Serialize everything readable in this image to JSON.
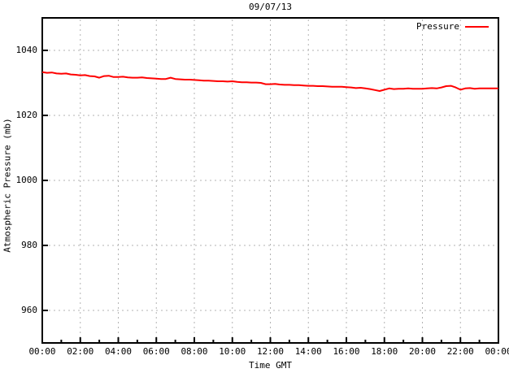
{
  "chart_data": {
    "type": "line",
    "title": "09/07/13",
    "xlabel": "Time GMT",
    "ylabel": "Atmospheric Pressure (mb)",
    "grid": true,
    "legend_position": "top-right-inside",
    "xlim_hours": [
      0,
      24
    ],
    "ylim": [
      950,
      1050
    ],
    "y_ticks": [
      960,
      980,
      1000,
      1020,
      1040
    ],
    "x_ticks": {
      "hours": [
        0,
        2,
        4,
        6,
        8,
        10,
        12,
        14,
        16,
        18,
        20,
        22,
        24
      ],
      "labels": [
        "00:00",
        "02:00",
        "04:00",
        "06:00",
        "08:00",
        "10:00",
        "12:00",
        "14:00",
        "16:00",
        "18:00",
        "20:00",
        "22:00",
        "00:00"
      ]
    },
    "x_minor_tick_hours": [
      1,
      3,
      5,
      7,
      9,
      11,
      13,
      15,
      17,
      19,
      21,
      23
    ],
    "colors": {
      "line": "#ff0000",
      "grid": "#b3b3b3",
      "axis": "#000000",
      "text": "#000000",
      "background": "#ffffff"
    },
    "series": [
      {
        "name": "Pressure",
        "color": "#ff0000",
        "x_start_hour": 0,
        "x_step_hours": 0.25,
        "values": [
          1033.3,
          1033.1,
          1033.2,
          1032.9,
          1032.8,
          1032.9,
          1032.6,
          1032.5,
          1032.3,
          1032.4,
          1032.1,
          1032.0,
          1031.6,
          1032.1,
          1032.2,
          1031.8,
          1031.8,
          1031.9,
          1031.7,
          1031.6,
          1031.6,
          1031.7,
          1031.5,
          1031.4,
          1031.3,
          1031.2,
          1031.2,
          1031.6,
          1031.2,
          1031.1,
          1031.0,
          1031.0,
          1030.9,
          1030.8,
          1030.7,
          1030.7,
          1030.6,
          1030.5,
          1030.5,
          1030.4,
          1030.5,
          1030.3,
          1030.2,
          1030.2,
          1030.1,
          1030.1,
          1030.0,
          1029.6,
          1029.6,
          1029.7,
          1029.5,
          1029.4,
          1029.4,
          1029.3,
          1029.3,
          1029.2,
          1029.1,
          1029.1,
          1029.0,
          1029.0,
          1028.9,
          1028.8,
          1028.8,
          1028.8,
          1028.7,
          1028.6,
          1028.4,
          1028.5,
          1028.3,
          1028.1,
          1027.8,
          1027.5,
          1027.9,
          1028.3,
          1028.1,
          1028.2,
          1028.2,
          1028.3,
          1028.2,
          1028.2,
          1028.2,
          1028.3,
          1028.4,
          1028.3,
          1028.6,
          1029.0,
          1029.1,
          1028.6,
          1027.9,
          1028.3,
          1028.4,
          1028.2,
          1028.3,
          1028.3,
          1028.3,
          1028.3,
          1028.3
        ]
      }
    ]
  }
}
